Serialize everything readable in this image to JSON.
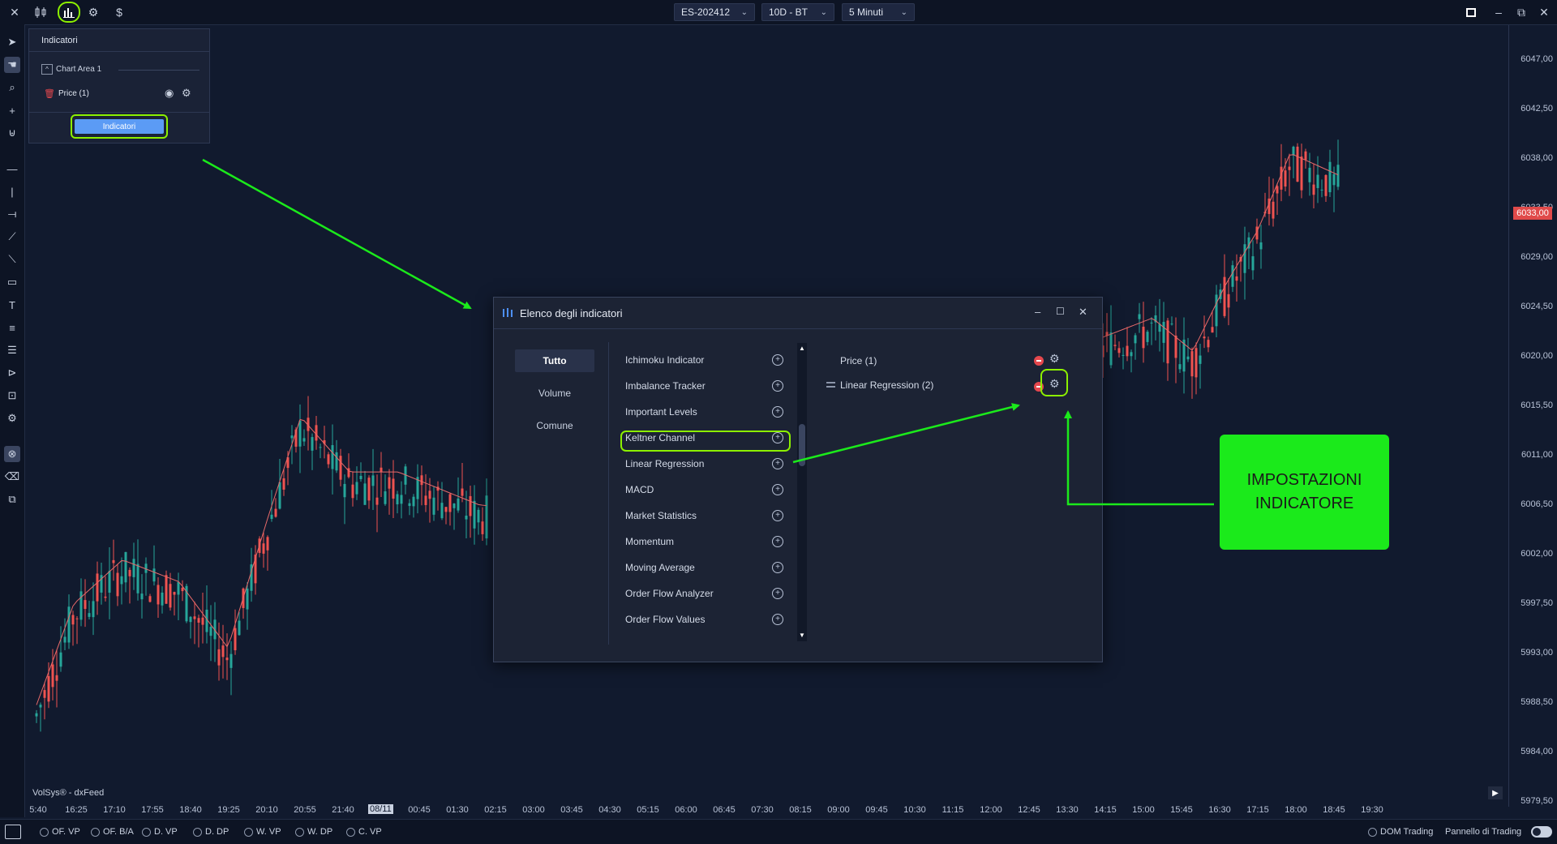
{
  "topbar": {
    "instrument": "ES-202412",
    "range": "10D - BT",
    "timeframe": "5 Minuti",
    "currency_symbol": "$"
  },
  "indicator_panel": {
    "title": "Indicatori",
    "chart_area": "Chart Area 1",
    "price_item": "Price (1)",
    "button_label": "Indicatori"
  },
  "dialog": {
    "title": "Elenco degli indicatori",
    "categories": [
      "Tutto",
      "Volume",
      "Comune"
    ],
    "indicators": [
      "Ichimoku Indicator",
      "Imbalance Tracker",
      "Important Levels",
      "Keltner Channel",
      "Linear Regression",
      "MACD",
      "Market Statistics",
      "Momentum",
      "Moving Average",
      "Order Flow Analyzer",
      "Order Flow Values"
    ],
    "selected": [
      "Price (1)",
      "Linear Regression (2)"
    ]
  },
  "callout": {
    "line1": "IMPOSTAZIONI",
    "line2": "INDICATORE"
  },
  "price_axis": [
    "6047,00",
    "6042,50",
    "6038,00",
    "6033,50",
    "6029,00",
    "6024,50",
    "6020,00",
    "6015,50",
    "6011,00",
    "6006,50",
    "6002,00",
    "5997,50",
    "5993,00",
    "5988,50",
    "5984,00",
    "5979,50"
  ],
  "current_price": "6033,00",
  "time_axis": [
    "5:40",
    "16:25",
    "17:10",
    "17:55",
    "18:40",
    "19:25",
    "20:10",
    "20:55",
    "21:40",
    "08/11",
    "00:45",
    "01:30",
    "02:15",
    "03:00",
    "03:45",
    "04:30",
    "05:15",
    "06:00",
    "06:45",
    "07:30",
    "08:15",
    "09:00",
    "09:45",
    "10:30",
    "11:15",
    "12:00",
    "12:45",
    "13:30",
    "14:15",
    "15:00",
    "15:45",
    "16:30",
    "17:15",
    "18:00",
    "18:45",
    "19:30"
  ],
  "watermark": "VolSys® - dxFeed",
  "bottom_toggles": [
    "OF. VP",
    "OF. B/A",
    "D. VP",
    "D. DP",
    "W. VP",
    "W. DP",
    "C. VP"
  ],
  "bottom_right": {
    "dom": "DOM Trading",
    "panel": "Pannello di Trading"
  },
  "colors": {
    "up": "#26a69a",
    "down": "#ef5350",
    "highlight": "#8cf000",
    "arrow": "#1bea1b",
    "background": "#111a2e"
  }
}
